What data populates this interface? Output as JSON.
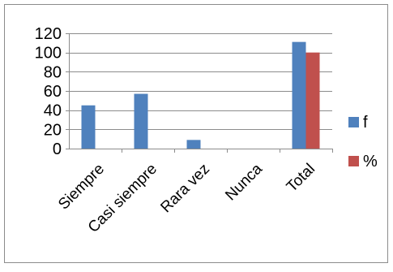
{
  "chart_data": {
    "type": "bar",
    "title": "",
    "xlabel": "",
    "ylabel": "",
    "categories": [
      "Siempre",
      "Casi siempre",
      "Rara vez",
      "Nunca",
      "Total"
    ],
    "series": [
      {
        "name": "f",
        "values": [
          45,
          57,
          9,
          0,
          111
        ],
        "color": "#4F81BD"
      },
      {
        "name": "%",
        "values": [
          null,
          null,
          null,
          null,
          100
        ],
        "color": "#C0504D"
      }
    ],
    "ylim": [
      0,
      120
    ],
    "yticks": [
      0,
      20,
      40,
      60,
      80,
      100,
      120
    ],
    "grid": true,
    "legend": "right"
  }
}
